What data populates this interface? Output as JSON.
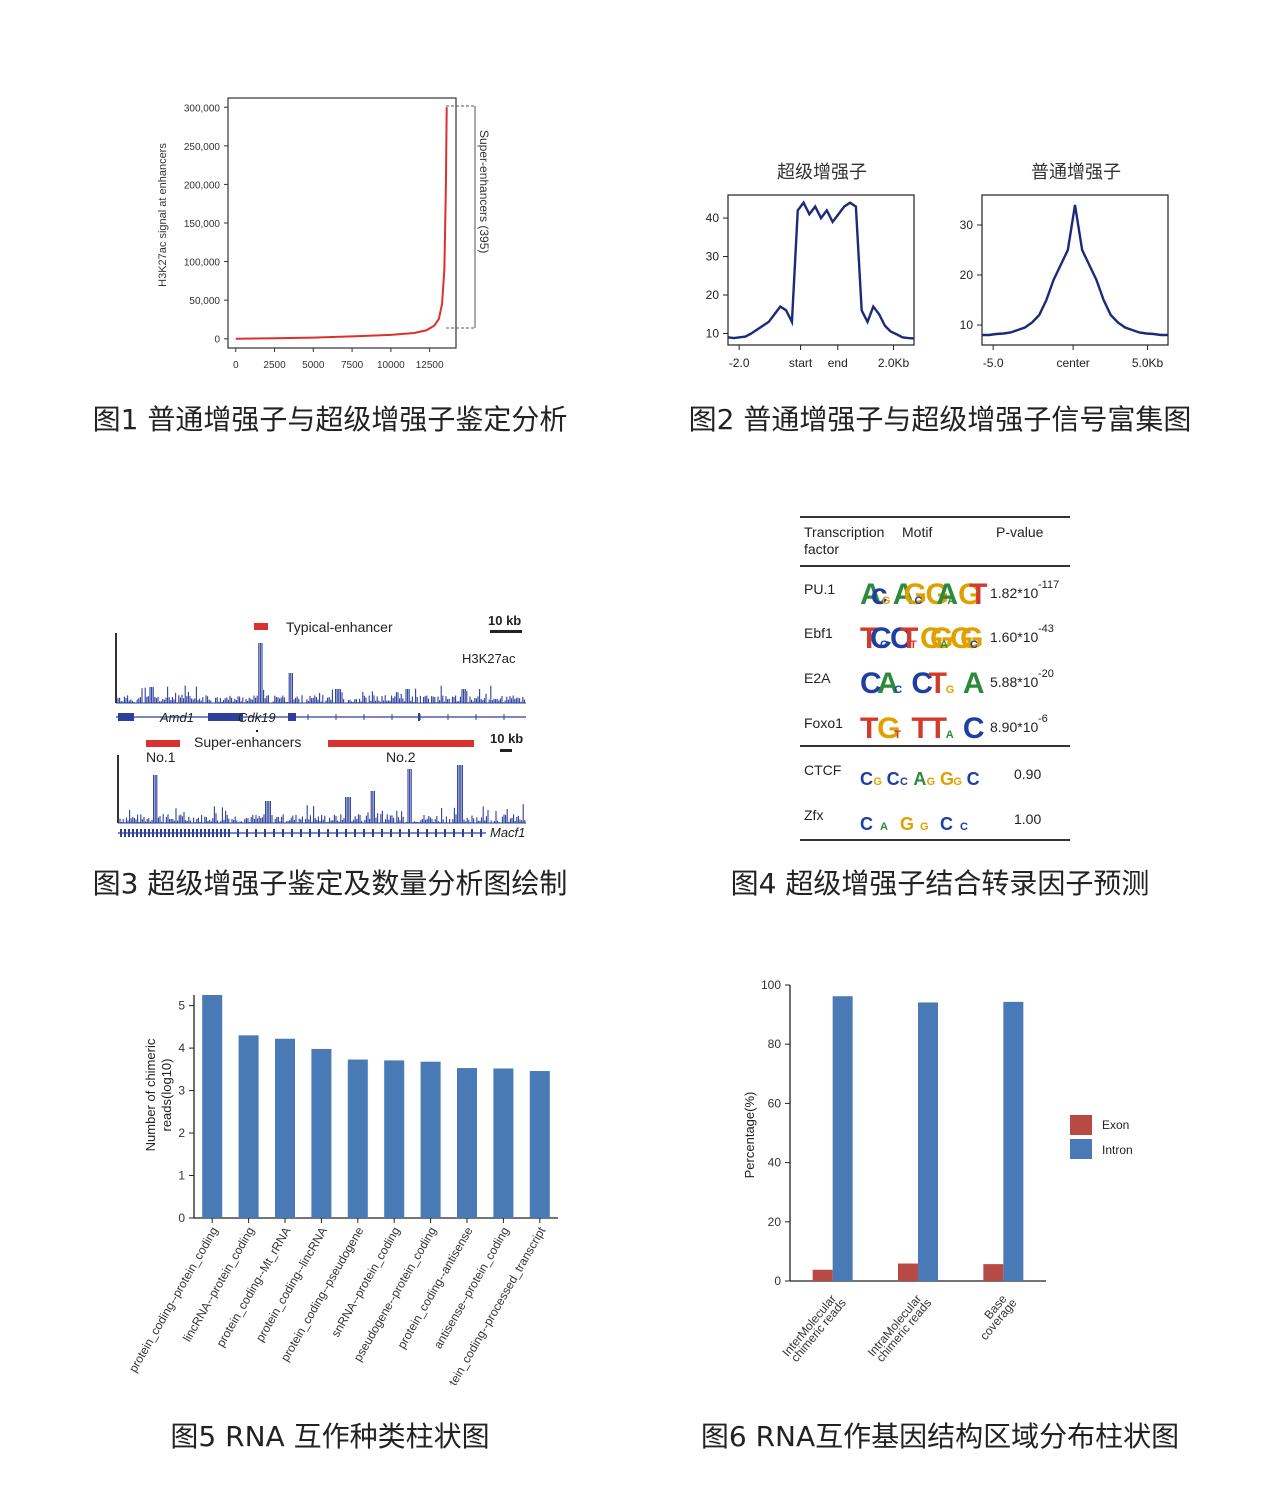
{
  "captions": [
    "图1 普通增强子与超级增强子鉴定分析",
    "图2 普通增强子与超级增强子信号富集图",
    "图3 超级增强子鉴定及数量分析图绘制",
    "图4 超级增强子结合转录因子预测",
    "图5 RNA 互作种类柱状图",
    "图6 RNA互作基因结构区域分布柱状图"
  ],
  "colors": {
    "red": "#d9322e",
    "navy": "#1c2a7a",
    "blue_bar": "#4a7ab6",
    "exon": "#b84a45",
    "intron": "#4a7ab6",
    "track": "#2c3f9a"
  },
  "chart_data": [
    {
      "id": "fig1",
      "type": "line",
      "ylabel": "H3K27ac signal at enhancers",
      "xticks": [
        "0",
        "2500",
        "5000",
        "7500",
        "10000",
        "12500"
      ],
      "yticks": [
        "0",
        "50,000",
        "100,000",
        "150,000",
        "200,000",
        "250,000",
        "300,000"
      ],
      "xlim": [
        -500,
        14200
      ],
      "ylim": [
        -12000,
        312000
      ],
      "x": [
        0,
        2500,
        5000,
        7500,
        10000,
        11500,
        12300,
        12800,
        13100,
        13300,
        13450,
        13550,
        13600
      ],
      "y": [
        0,
        600,
        1500,
        3000,
        5000,
        7500,
        11000,
        17000,
        26000,
        45000,
        90000,
        200000,
        300000
      ],
      "bracket_label": "Super-enhancers (395)"
    },
    {
      "id": "fig2a",
      "type": "line",
      "title": "超级增强子",
      "xticks": [
        "-2.0",
        "start",
        "end",
        "2.0Kb"
      ],
      "yticks": [
        "10",
        "20",
        "30",
        "40"
      ],
      "ylim": [
        7,
        46
      ],
      "y": [
        9,
        8.8,
        9,
        9.2,
        10,
        11,
        12,
        13,
        15,
        17,
        16,
        13,
        42,
        44,
        41,
        43,
        40,
        42,
        39,
        41,
        43,
        44,
        43,
        16,
        13,
        17,
        15,
        12,
        10.5,
        9.8,
        9,
        8.8,
        8.7
      ]
    },
    {
      "id": "fig2b",
      "type": "line",
      "title": "普通增强子",
      "xticks": [
        "-5.0",
        "center",
        "5.0Kb"
      ],
      "yticks": [
        "10",
        "20",
        "30"
      ],
      "ylim": [
        6,
        36
      ],
      "y": [
        8,
        8,
        8.2,
        8.3,
        8.5,
        9,
        9.5,
        10.5,
        12,
        15,
        19,
        22,
        25,
        34,
        25,
        22,
        19,
        15,
        12,
        10.5,
        9.5,
        9,
        8.5,
        8.3,
        8.2,
        8,
        8
      ]
    },
    {
      "id": "fig5",
      "type": "bar",
      "ylabel": "Number of chimeric reads(log10)",
      "yticks": [
        "0",
        "1",
        "2",
        "3",
        "4",
        "5"
      ],
      "ylim": [
        0,
        5.25
      ],
      "categories": [
        "protein_coding--protein_coding",
        "lincRNA--protein_coding",
        "protein_coding--Mt_rRNA",
        "protein_coding--lincRNA",
        "protein_coding--pseudogene",
        "snRNA--protein_coding",
        "pseudogene--protein_coding",
        "protein_coding--antisense",
        "antisense--protein_coding",
        "protein_coding--processed_transcript"
      ],
      "values": [
        5.25,
        4.3,
        4.22,
        3.98,
        3.73,
        3.71,
        3.68,
        3.53,
        3.52,
        3.46
      ]
    },
    {
      "id": "fig6",
      "type": "bar",
      "ylabel": "Percentage(%)",
      "yticks": [
        "0",
        "20",
        "40",
        "60",
        "80",
        "100"
      ],
      "ylim": [
        0,
        100
      ],
      "categories": [
        "InterMolecular chimeric reads",
        "IntraMolecular chimeric reads",
        "Base coverage"
      ],
      "series": [
        {
          "name": "Exon",
          "values": [
            3.8,
            5.9,
            5.7
          ]
        },
        {
          "name": "Intron",
          "values": [
            96.2,
            94.1,
            94.3
          ]
        }
      ],
      "legend": "right"
    }
  ],
  "fig3": {
    "typical_label": "Typical-enhancer",
    "scale_top": "10 kb",
    "mark": "H3K27ac",
    "genes_top": [
      "Amd1",
      "Cdk19"
    ],
    "super_label": "Super-enhancers",
    "scale_bottom": "10 kb",
    "no1": "No.1",
    "no2": "No.2",
    "gene_bottom": "Macf1"
  },
  "fig4": {
    "headers": [
      "Transcription",
      "factor",
      "Motif",
      "P-value"
    ],
    "rows": [
      {
        "tf": "PU.1",
        "p": "1.82*10",
        "exp": "-117"
      },
      {
        "tf": "Ebf1",
        "p": "1.60*10",
        "exp": "-43"
      },
      {
        "tf": "E2A",
        "p": "5.88*10",
        "exp": "-20"
      },
      {
        "tf": "Foxo1",
        "p": "8.90*10",
        "exp": "-6"
      },
      {
        "tf": "CTCF",
        "p": "0.90",
        "exp": ""
      },
      {
        "tf": "Zfx",
        "p": "1.00",
        "exp": ""
      }
    ],
    "motifs": [
      [
        "A",
        "c",
        "G",
        "A",
        "G",
        "C",
        "G",
        "A",
        "A",
        "G",
        "T"
      ],
      [
        "T",
        "C",
        "C",
        "C",
        "T",
        "T",
        "G",
        "G",
        "A",
        "G",
        "G",
        "C"
      ],
      [
        "C",
        "A",
        "C",
        "C",
        "T",
        "G",
        "A"
      ],
      [
        "T",
        "G",
        "T",
        "T",
        "T",
        "A",
        "C"
      ],
      [
        "C",
        "G",
        "C",
        "C",
        "A",
        "G",
        "G",
        "G",
        "C"
      ],
      [
        "C",
        "A",
        "G",
        "G",
        "C",
        "C"
      ]
    ]
  }
}
